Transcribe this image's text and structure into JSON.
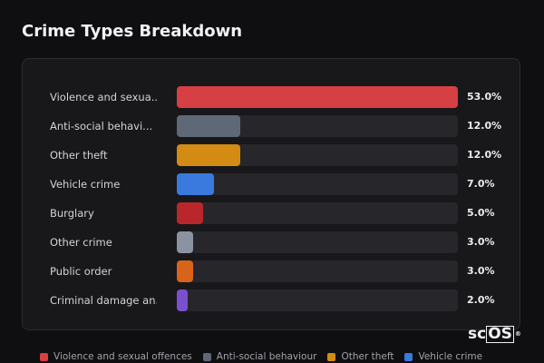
{
  "page": {
    "title": "Crime Types Breakdown"
  },
  "chart_data": {
    "type": "bar",
    "orientation": "horizontal",
    "title": "Crime Types Breakdown",
    "xlim": [
      0,
      53
    ],
    "grid": false,
    "legend_position": "bottom",
    "categories": [
      "Violence and sexua...",
      "Anti-social behavi...",
      "Other theft",
      "Vehicle crime",
      "Burglary",
      "Other crime",
      "Public order",
      "Criminal damage an..."
    ],
    "values": [
      53.0,
      12.0,
      12.0,
      7.0,
      5.0,
      3.0,
      3.0,
      2.0
    ],
    "value_labels": [
      "53.0%",
      "12.0%",
      "12.0%",
      "7.0%",
      "5.0%",
      "3.0%",
      "3.0%",
      "2.0%"
    ],
    "colors": [
      "#d63f43",
      "#5f6877",
      "#d38b14",
      "#3a79de",
      "#b9272c",
      "#8b93a2",
      "#d8641c",
      "#7b50d0"
    ]
  },
  "legend": {
    "items": [
      {
        "label": "Violence and sexual offences",
        "color": "#d63f43"
      },
      {
        "label": "Anti-social behaviour",
        "color": "#5f6877"
      },
      {
        "label": "Other theft",
        "color": "#d38b14"
      },
      {
        "label": "Vehicle crime",
        "color": "#3a79de"
      }
    ]
  },
  "logo": {
    "prefix": "sc",
    "boxed": "OS",
    "mark": "®"
  }
}
